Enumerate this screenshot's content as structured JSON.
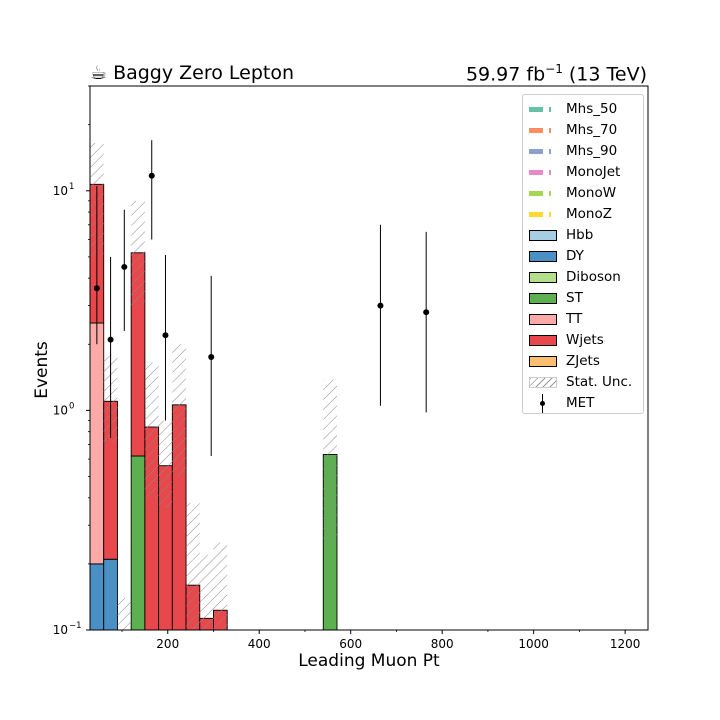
{
  "header": {
    "left_title": "☕ Baggy Zero Lepton",
    "lumi": "59.97 fb",
    "lumi_exp": "−1",
    "energy": " (13 TeV)"
  },
  "chart_data": {
    "type": "bar",
    "xlabel": "Leading Muon Pt",
    "ylabel": "Events",
    "xlim": [
      30,
      1250
    ],
    "ylim": [
      0.1,
      30
    ],
    "yscale": "log",
    "x_ticks": [
      200,
      400,
      600,
      800,
      1000,
      1200
    ],
    "y_ticks": [
      {
        "value": 0.1,
        "base": "10",
        "exp": "−1"
      },
      {
        "value": 1,
        "base": "10",
        "exp": "0"
      },
      {
        "value": 10,
        "base": "10",
        "exp": "1"
      }
    ],
    "bin_edges": [
      30,
      60,
      90,
      120,
      150,
      180,
      210,
      240,
      270,
      300,
      330,
      360,
      390,
      420,
      450,
      480,
      510,
      540,
      570,
      600
    ],
    "stack_order": [
      "DY",
      "TT",
      "ST",
      "Wjets"
    ],
    "stacked_series": [
      {
        "name": "DY",
        "color": "#4a90c4",
        "values": [
          0.2,
          0.21,
          0,
          0,
          0,
          0,
          0,
          0,
          0,
          0,
          0,
          0,
          0,
          0,
          0,
          0,
          0,
          0,
          0
        ]
      },
      {
        "name": "TT",
        "color": "#fbaaa8",
        "values": [
          2.3,
          0,
          0,
          0,
          0,
          0,
          0,
          0,
          0,
          0,
          0,
          0,
          0,
          0,
          0,
          0,
          0,
          0,
          0
        ]
      },
      {
        "name": "ST",
        "color": "#5cb050",
        "values": [
          0,
          0,
          0,
          0.62,
          0,
          0,
          0,
          0,
          0,
          0,
          0,
          0,
          0,
          0,
          0,
          0,
          0,
          0.63,
          0
        ]
      },
      {
        "name": "Wjets",
        "color": "#e8474b",
        "values": [
          8.2,
          0.89,
          0,
          4.6,
          0.84,
          0.56,
          1.06,
          0.16,
          0.113,
          0.123,
          0,
          0,
          0,
          0,
          0,
          0,
          0,
          0,
          0
        ]
      }
    ],
    "stat_unc": {
      "label": "Stat. Unc.",
      "bins": [
        {
          "bin": 0,
          "low": 5.0,
          "high": 16.5
        },
        {
          "bin": 1,
          "low": 0.72,
          "high": 1.8
        },
        {
          "bin": 2,
          "low": 0.1,
          "high": 0.14
        },
        {
          "bin": 3,
          "low": 3.0,
          "high": 9.0
        },
        {
          "bin": 4,
          "low": 0.4,
          "high": 1.65
        },
        {
          "bin": 5,
          "low": 0.36,
          "high": 0.9
        },
        {
          "bin": 6,
          "low": 0.5,
          "high": 2.0
        },
        {
          "bin": 7,
          "low": 0.1,
          "high": 0.38
        },
        {
          "bin": 8,
          "low": 0.1,
          "high": 0.22
        },
        {
          "bin": 9,
          "low": 0.1,
          "high": 0.25
        },
        {
          "bin": 17,
          "low": 0.25,
          "high": 1.38
        }
      ]
    },
    "data_points": {
      "name": "MET",
      "points": [
        {
          "x": 45,
          "y": 3.6,
          "ylo": 2.0,
          "yhi": 10.5
        },
        {
          "x": 75,
          "y": 2.1,
          "ylo": 0.75,
          "yhi": 5.0
        },
        {
          "x": 105,
          "y": 4.5,
          "ylo": 2.3,
          "yhi": 8.2
        },
        {
          "x": 165,
          "y": 11.7,
          "ylo": 6.0,
          "yhi": 17.0
        },
        {
          "x": 195,
          "y": 2.2,
          "ylo": 0.9,
          "yhi": 5.1
        },
        {
          "x": 295,
          "y": 1.75,
          "ylo": 0.62,
          "yhi": 4.1
        },
        {
          "x": 665,
          "y": 3.0,
          "ylo": 1.05,
          "yhi": 7.0
        },
        {
          "x": 765,
          "y": 2.8,
          "ylo": 0.98,
          "yhi": 6.5
        }
      ]
    },
    "legend": {
      "placement": "top-right",
      "items": [
        {
          "label": "Mhs_50",
          "kind": "dashed",
          "color": "#66c2a5"
        },
        {
          "label": "Mhs_70",
          "kind": "dashed",
          "color": "#fc8d62"
        },
        {
          "label": "Mhs_90",
          "kind": "dashed",
          "color": "#8da0cb"
        },
        {
          "label": "MonoJet",
          "kind": "dashed",
          "color": "#e78ac3"
        },
        {
          "label": "MonoW",
          "kind": "dashed",
          "color": "#a6d854"
        },
        {
          "label": "MonoZ",
          "kind": "dashed",
          "color": "#ffd92f"
        },
        {
          "label": "Hbb",
          "kind": "box",
          "color": "#a6cee3"
        },
        {
          "label": "DY",
          "kind": "box",
          "color": "#4a90c4"
        },
        {
          "label": "Diboson",
          "kind": "box",
          "color": "#b2df8a"
        },
        {
          "label": "ST",
          "kind": "box",
          "color": "#5cb050"
        },
        {
          "label": "TT",
          "kind": "box",
          "color": "#fbaaa8"
        },
        {
          "label": "Wjets",
          "kind": "box",
          "color": "#e8474b"
        },
        {
          "label": "ZJets",
          "kind": "box",
          "color": "#fdbf6f"
        },
        {
          "label": "Stat. Unc.",
          "kind": "hatch",
          "color": "#999999"
        },
        {
          "label": "MET",
          "kind": "point",
          "color": "#000000"
        }
      ]
    }
  }
}
